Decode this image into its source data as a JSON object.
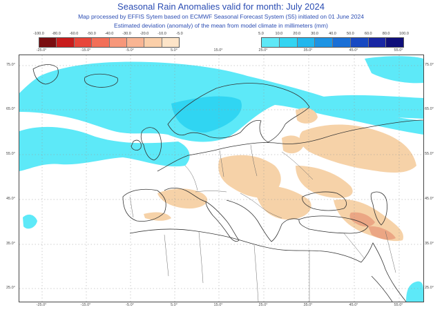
{
  "header": {
    "title": "Seasonal Rain Anomalies valid for month: July 2024",
    "subtitle_1": "Map processed by EFFIS Sytem based on ECMWF Seasonal Forecast System (S5) initiated on 01 June 2024",
    "subtitle_2": "Estimated deviation (anomaly) of the mean from model climate in millimeters (mm)"
  },
  "legend": {
    "negative": {
      "ticks": [
        "-100.0",
        "-80.0",
        "-60.0",
        "-50.0",
        "-40.0",
        "-30.0",
        "-20.0",
        "-10.0",
        "-5.0"
      ],
      "colors": [
        "#7a0d10",
        "#c81c1c",
        "#e8463a",
        "#f26f58",
        "#f7977a",
        "#f9b593",
        "#fbcfa9",
        "#fde4c8"
      ]
    },
    "positive": {
      "ticks": [
        "5.0",
        "10.0",
        "20.0",
        "30.0",
        "40.0",
        "50.0",
        "60.0",
        "80.0",
        "100.0"
      ],
      "colors": [
        "#5fe8f7",
        "#33d4f2",
        "#22b7ee",
        "#1d94e4",
        "#1a6fd6",
        "#1849c2",
        "#1826a4",
        "#0e0e7a"
      ]
    }
  },
  "map": {
    "lon_ticks": [
      "-25.0°",
      "-15.0°",
      "-5.0°",
      "5.0°",
      "15.0°",
      "25.0°",
      "35.0°",
      "45.0°",
      "55.0°"
    ],
    "lat_ticks": [
      "75.0°",
      "65.0°",
      "55.0°",
      "45.0°",
      "35.0°",
      "25.0°"
    ],
    "colors": {
      "wet_light": "#5de9f8",
      "wet_mid": "#30d5f2",
      "dry_light": "#f6d2a8",
      "dry_mid": "#eba684",
      "coast": "#333333",
      "grid": "#9a9a9a"
    }
  }
}
